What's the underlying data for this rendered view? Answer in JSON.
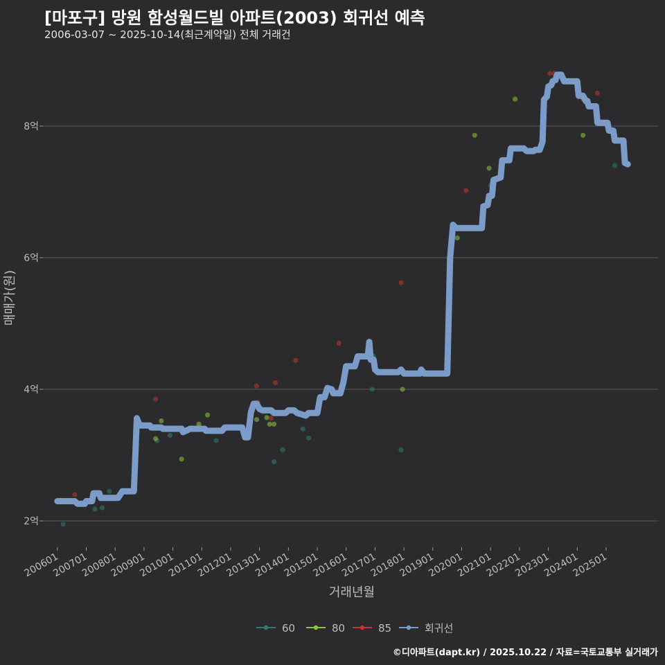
{
  "header": {
    "title": "[마포구] 망원 함성월드빌 아파트(2003) 회귀선 예측",
    "subtitle": "2006-03-07 ~ 2025-10-14(최근계약일) 전체 거래건"
  },
  "caption": "©디아파트(dapt.kr) / 2025.10.22 / 자료=국토교통부 실거래가",
  "colors": {
    "background": "#2b2b2d",
    "grid": "#5a5a5a",
    "s60": "#2e7d6b",
    "s80": "#8cc63f",
    "s85": "#c0392b",
    "regression": "#7b9cc8"
  },
  "chart_data": {
    "type": "scatter",
    "title": "[마포구] 망원 함성월드빌 아파트(2003) 회귀선 예측",
    "xlabel": "거래년월",
    "ylabel": "매매가(원)",
    "x_range": [
      2005.5,
      2026.8
    ],
    "ylim": [
      1.6,
      9.2
    ],
    "y_ticks": [
      2,
      4,
      6,
      8
    ],
    "y_tick_labels": [
      "2억",
      "4억",
      "6억",
      "8억"
    ],
    "x_ticks": [
      2006,
      2007,
      2008,
      2009,
      2010,
      2011,
      2012,
      2013,
      2014,
      2015,
      2016,
      2017,
      2018,
      2019,
      2020,
      2021,
      2022,
      2023,
      2024,
      2025
    ],
    "x_tick_labels": [
      "200601",
      "200701",
      "200801",
      "200901",
      "201001",
      "201101",
      "201201",
      "201301",
      "201401",
      "201501",
      "201601",
      "201701",
      "201801",
      "201901",
      "202001",
      "202101",
      "202201",
      "202301",
      "202401",
      "202501"
    ],
    "legend": [
      {
        "key": "s60",
        "label": "60"
      },
      {
        "key": "s80",
        "label": "80"
      },
      {
        "key": "s85",
        "label": "85"
      },
      {
        "key": "regression",
        "label": "회귀선"
      }
    ],
    "series": [
      {
        "name": "60",
        "key": "s60",
        "points": [
          [
            2006.2,
            1.95
          ],
          [
            2007.3,
            2.18
          ],
          [
            2007.55,
            2.2
          ],
          [
            2007.8,
            2.45
          ],
          [
            2009.45,
            3.22
          ],
          [
            2009.9,
            3.3
          ],
          [
            2011.5,
            3.22
          ],
          [
            2013.5,
            2.9
          ],
          [
            2013.8,
            3.08
          ],
          [
            2014.5,
            3.4
          ],
          [
            2014.7,
            3.26
          ],
          [
            2016.9,
            4.0
          ],
          [
            2016.95,
            4.5
          ],
          [
            2017.9,
            3.08
          ],
          [
            2019.6,
            6.0
          ],
          [
            2021.0,
            7.1
          ],
          [
            2025.3,
            7.4
          ]
        ]
      },
      {
        "name": "80",
        "key": "s80",
        "points": [
          [
            2009.4,
            3.25
          ],
          [
            2009.6,
            3.52
          ],
          [
            2010.3,
            2.94
          ],
          [
            2010.9,
            3.47
          ],
          [
            2011.2,
            3.61
          ],
          [
            2012.9,
            3.54
          ],
          [
            2013.25,
            3.57
          ],
          [
            2013.35,
            3.47
          ],
          [
            2013.5,
            3.47
          ],
          [
            2017.95,
            4.0
          ],
          [
            2019.85,
            6.3
          ],
          [
            2020.45,
            7.86
          ],
          [
            2020.95,
            7.36
          ],
          [
            2021.85,
            8.41
          ],
          [
            2024.2,
            7.86
          ]
        ]
      },
      {
        "name": "85",
        "key": "s85",
        "points": [
          [
            2006.6,
            2.4
          ],
          [
            2009.4,
            3.85
          ],
          [
            2012.9,
            4.05
          ],
          [
            2012.95,
            3.8
          ],
          [
            2013.4,
            3.56
          ],
          [
            2013.55,
            4.1
          ],
          [
            2014.25,
            4.44
          ],
          [
            2015.75,
            4.7
          ],
          [
            2017.9,
            5.62
          ],
          [
            2020.15,
            7.02
          ],
          [
            2023.05,
            8.8
          ],
          [
            2023.2,
            8.8
          ],
          [
            2024.2,
            8.41
          ],
          [
            2024.7,
            8.5
          ]
        ]
      }
    ],
    "regression": [
      [
        2006.0,
        2.3
      ],
      [
        2006.6,
        2.3
      ],
      [
        2006.7,
        2.26
      ],
      [
        2006.95,
        2.26
      ],
      [
        2007.0,
        2.3
      ],
      [
        2007.2,
        2.3
      ],
      [
        2007.25,
        2.42
      ],
      [
        2007.45,
        2.42
      ],
      [
        2007.5,
        2.35
      ],
      [
        2008.1,
        2.35
      ],
      [
        2008.25,
        2.45
      ],
      [
        2008.65,
        2.45
      ],
      [
        2008.75,
        3.56
      ],
      [
        2008.85,
        3.45
      ],
      [
        2009.2,
        3.45
      ],
      [
        2009.25,
        3.42
      ],
      [
        2009.6,
        3.42
      ],
      [
        2009.65,
        3.4
      ],
      [
        2010.3,
        3.4
      ],
      [
        2010.35,
        3.35
      ],
      [
        2010.6,
        3.4
      ],
      [
        2011.1,
        3.4
      ],
      [
        2011.15,
        3.37
      ],
      [
        2011.7,
        3.37
      ],
      [
        2011.8,
        3.42
      ],
      [
        2012.4,
        3.42
      ],
      [
        2012.5,
        3.27
      ],
      [
        2012.6,
        3.27
      ],
      [
        2012.7,
        3.65
      ],
      [
        2012.8,
        3.78
      ],
      [
        2012.9,
        3.78
      ],
      [
        2013.0,
        3.7
      ],
      [
        2013.1,
        3.68
      ],
      [
        2013.4,
        3.68
      ],
      [
        2013.5,
        3.64
      ],
      [
        2013.9,
        3.64
      ],
      [
        2014.0,
        3.68
      ],
      [
        2014.2,
        3.68
      ],
      [
        2014.3,
        3.64
      ],
      [
        2014.6,
        3.6
      ],
      [
        2014.7,
        3.64
      ],
      [
        2015.0,
        3.64
      ],
      [
        2015.1,
        3.88
      ],
      [
        2015.25,
        3.88
      ],
      [
        2015.35,
        4.02
      ],
      [
        2015.5,
        4.0
      ],
      [
        2015.55,
        3.94
      ],
      [
        2015.8,
        3.94
      ],
      [
        2015.9,
        4.1
      ],
      [
        2016.0,
        4.35
      ],
      [
        2016.3,
        4.35
      ],
      [
        2016.4,
        4.5
      ],
      [
        2016.75,
        4.5
      ],
      [
        2016.8,
        4.72
      ],
      [
        2016.85,
        4.45
      ],
      [
        2016.95,
        4.45
      ],
      [
        2017.0,
        4.3
      ],
      [
        2017.1,
        4.26
      ],
      [
        2017.8,
        4.26
      ],
      [
        2017.9,
        4.3
      ],
      [
        2018.0,
        4.24
      ],
      [
        2018.55,
        4.24
      ],
      [
        2018.6,
        4.3
      ],
      [
        2018.7,
        4.24
      ],
      [
        2019.5,
        4.24
      ],
      [
        2019.6,
        6.0
      ],
      [
        2019.7,
        6.5
      ],
      [
        2019.8,
        6.45
      ],
      [
        2020.7,
        6.45
      ],
      [
        2020.75,
        6.78
      ],
      [
        2020.9,
        6.8
      ],
      [
        2020.95,
        6.94
      ],
      [
        2021.05,
        6.94
      ],
      [
        2021.1,
        7.18
      ],
      [
        2021.35,
        7.22
      ],
      [
        2021.4,
        7.48
      ],
      [
        2021.65,
        7.48
      ],
      [
        2021.7,
        7.66
      ],
      [
        2022.15,
        7.66
      ],
      [
        2022.25,
        7.62
      ],
      [
        2022.5,
        7.62
      ],
      [
        2022.55,
        7.64
      ],
      [
        2022.7,
        7.64
      ],
      [
        2022.8,
        7.76
      ],
      [
        2022.85,
        8.4
      ],
      [
        2022.95,
        8.45
      ],
      [
        2023.0,
        8.6
      ],
      [
        2023.1,
        8.62
      ],
      [
        2023.15,
        8.68
      ],
      [
        2023.25,
        8.7
      ],
      [
        2023.3,
        8.78
      ],
      [
        2023.45,
        8.78
      ],
      [
        2023.55,
        8.68
      ],
      [
        2024.0,
        8.68
      ],
      [
        2024.05,
        8.46
      ],
      [
        2024.2,
        8.46
      ],
      [
        2024.3,
        8.38
      ],
      [
        2024.35,
        8.38
      ],
      [
        2024.4,
        8.3
      ],
      [
        2024.65,
        8.3
      ],
      [
        2024.7,
        8.05
      ],
      [
        2025.05,
        8.05
      ],
      [
        2025.1,
        7.93
      ],
      [
        2025.25,
        7.93
      ],
      [
        2025.3,
        7.78
      ],
      [
        2025.6,
        7.78
      ],
      [
        2025.65,
        7.44
      ],
      [
        2025.75,
        7.42
      ]
    ]
  }
}
